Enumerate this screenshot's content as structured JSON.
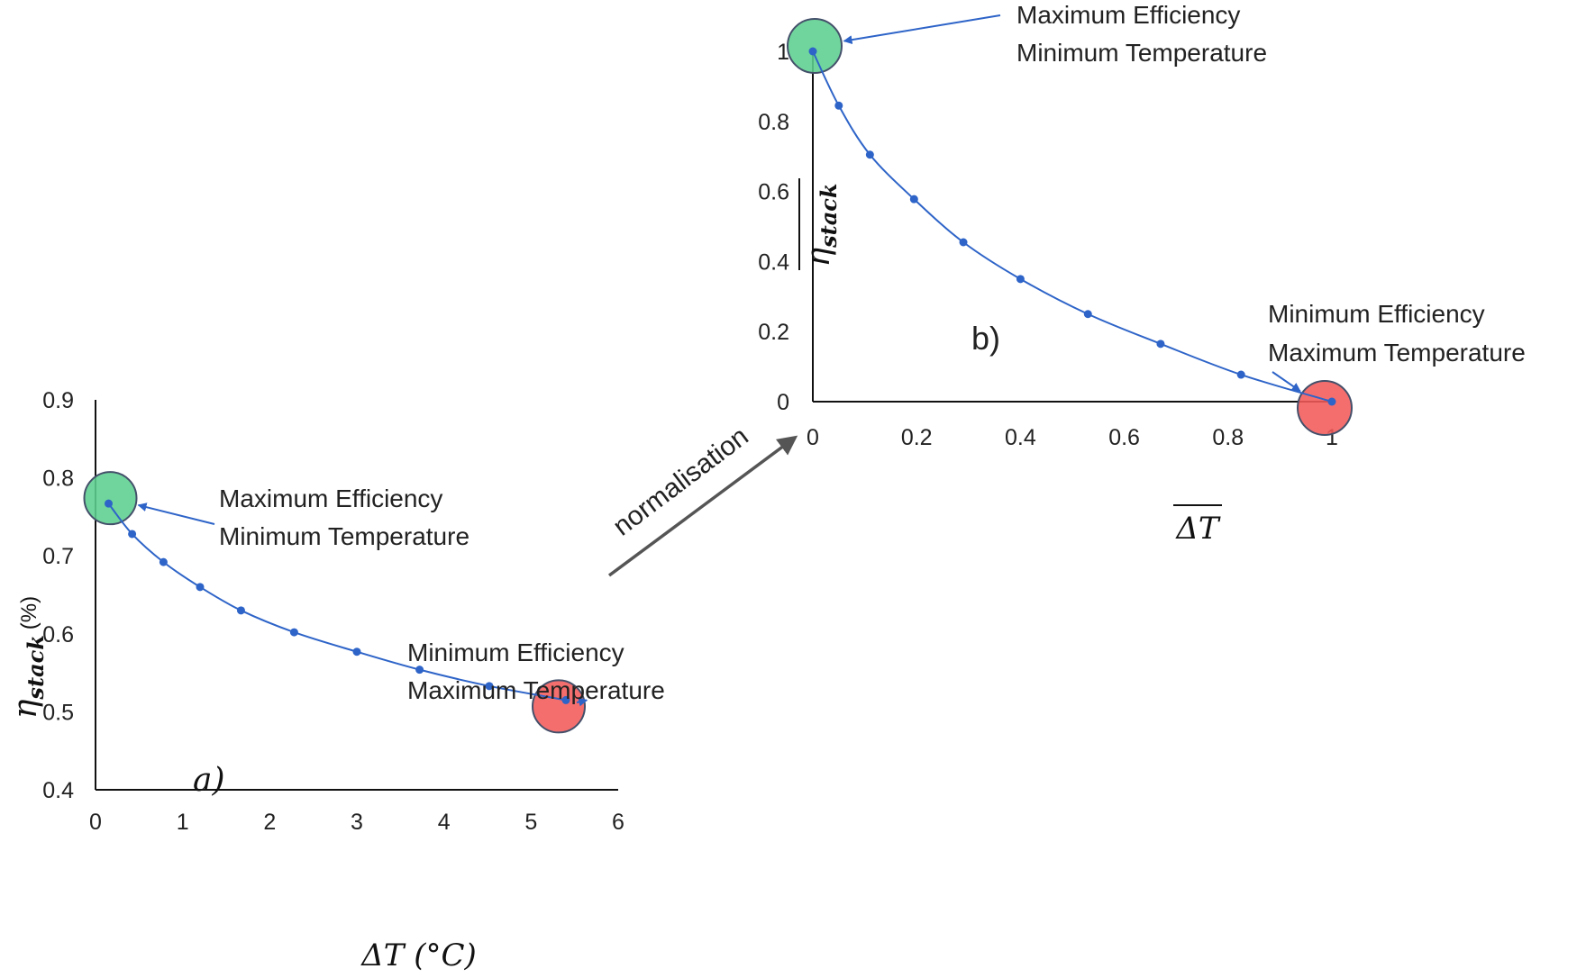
{
  "chart_data": [
    {
      "type": "line",
      "panel_label": "a)",
      "xlabel": "ΔT (°C)",
      "ylabel_symbol": "η",
      "ylabel_subscript": "stack",
      "ylabel_unit": "(%)",
      "xlim": [
        0,
        6
      ],
      "ylim": [
        0.4,
        0.9
      ],
      "x_ticks": [
        0,
        1,
        2,
        3,
        4,
        5,
        6
      ],
      "y_ticks": [
        0.4,
        0.5,
        0.6,
        0.7,
        0.8,
        0.9
      ],
      "x_tick_labels": [
        "0",
        "1",
        "2",
        "3",
        "4",
        "5",
        "6"
      ],
      "y_tick_labels": [
        "0.4",
        "0.5",
        "0.6",
        "0.7",
        "0.8",
        "0.9"
      ],
      "series": [
        {
          "name": "η_stack",
          "color": "#2e64c8",
          "x": [
            0.15,
            0.42,
            0.78,
            1.2,
            1.67,
            2.28,
            3.0,
            3.72,
            4.52,
            5.4
          ],
          "y": [
            0.767,
            0.728,
            0.692,
            0.66,
            0.63,
            0.602,
            0.577,
            0.554,
            0.533,
            0.515
          ]
        }
      ],
      "annotations": [
        {
          "line1": "Maximum Efficiency",
          "line2": "Minimum Temperature",
          "target_x": 0.15,
          "target_y": 0.767,
          "marker_color": "#5ccf8e"
        },
        {
          "line1": "Minimum Efficiency",
          "line2": "Maximum Temperature",
          "target_x": 5.4,
          "target_y": 0.515,
          "marker_color": "#f25a5a"
        }
      ]
    },
    {
      "type": "line",
      "panel_label": "b)",
      "xlabel": "ΔT",
      "ylabel_symbol": "η",
      "ylabel_subscript": "stack",
      "xlim": [
        0,
        1
      ],
      "ylim": [
        0,
        1
      ],
      "x_ticks": [
        0,
        0.2,
        0.4,
        0.6,
        0.8,
        1
      ],
      "y_ticks": [
        0,
        0.2,
        0.4,
        0.6,
        0.8,
        1
      ],
      "x_tick_labels": [
        "0",
        "0.2",
        "0.4",
        "0.6",
        "0.8",
        "1"
      ],
      "y_tick_labels": [
        "0",
        "0.2",
        "0.4",
        "0.6",
        "0.8",
        "1"
      ],
      "series": [
        {
          "name": "normalised η_stack",
          "color": "#2e64c8",
          "x": [
            0.0,
            0.05,
            0.11,
            0.195,
            0.29,
            0.4,
            0.53,
            0.67,
            0.825,
            1.0
          ],
          "y": [
            1.0,
            0.845,
            0.705,
            0.578,
            0.455,
            0.35,
            0.25,
            0.165,
            0.077,
            0.0
          ]
        }
      ],
      "annotations": [
        {
          "line1": "Maximum Efficiency",
          "line2": "Minimum Temperature",
          "target_x": 0.0,
          "target_y": 1.0,
          "marker_color": "#5ccf8e"
        },
        {
          "line1": "Minimum Efficiency",
          "line2": "Maximum Temperature",
          "target_x": 1.0,
          "target_y": 0.0,
          "marker_color": "#f25a5a"
        }
      ]
    }
  ],
  "transition": {
    "label": "normalisation",
    "color": "#555555"
  },
  "colors": {
    "axis": "#111111",
    "curve": "#2e64c8",
    "arrow": "#2e64c8",
    "marker_edge": "#44506a"
  }
}
